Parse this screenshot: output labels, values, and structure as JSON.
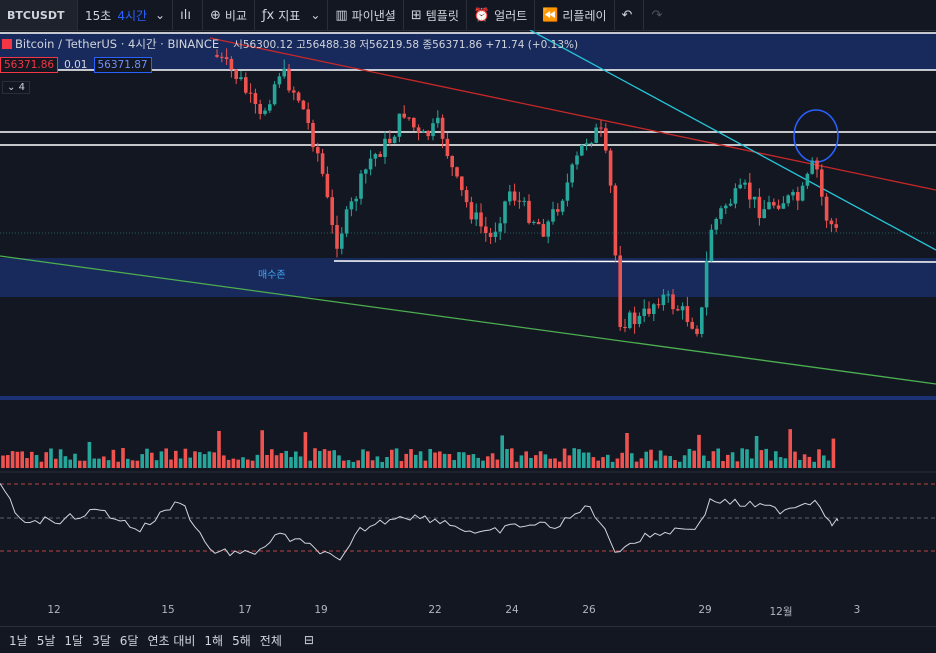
{
  "toolbar": {
    "symbol": "BTCUSDT",
    "intervals": [
      "15초",
      "4시간"
    ],
    "compare": "비교",
    "indicators": "지표",
    "financials": "파이낸셜",
    "templates": "템플릿",
    "alerts": "얼러트",
    "replay": "리플레이"
  },
  "legend": {
    "title": "Bitcoin / TetherUS · 4시간 · BINANCE",
    "ohlc": "시56300.12 고56488.38 저56219.58 종56371.86 +71.74 (+0.13%)",
    "bid": "56371.86",
    "spread": "0.01",
    "ask": "56371.87",
    "indicator_count": "4"
  },
  "zone_label": "매수존",
  "x_labels": [
    "12",
    "15",
    "17",
    "19",
    "22",
    "24",
    "26",
    "29",
    "12월",
    "3"
  ],
  "timeframes": [
    "1날",
    "5날",
    "1달",
    "3달",
    "6달",
    "연초 대비",
    "1해",
    "5해",
    "전체"
  ],
  "colors": {
    "up": "#26a69a",
    "down": "#ef5350",
    "zone": "#1e3a8a"
  },
  "chart_data": {
    "type": "candlestick",
    "symbol": "BTCUSDT",
    "interval": "4시간",
    "close": 56371.86,
    "open": 56300.12,
    "high": 56488.38,
    "low": 56219.58
  }
}
